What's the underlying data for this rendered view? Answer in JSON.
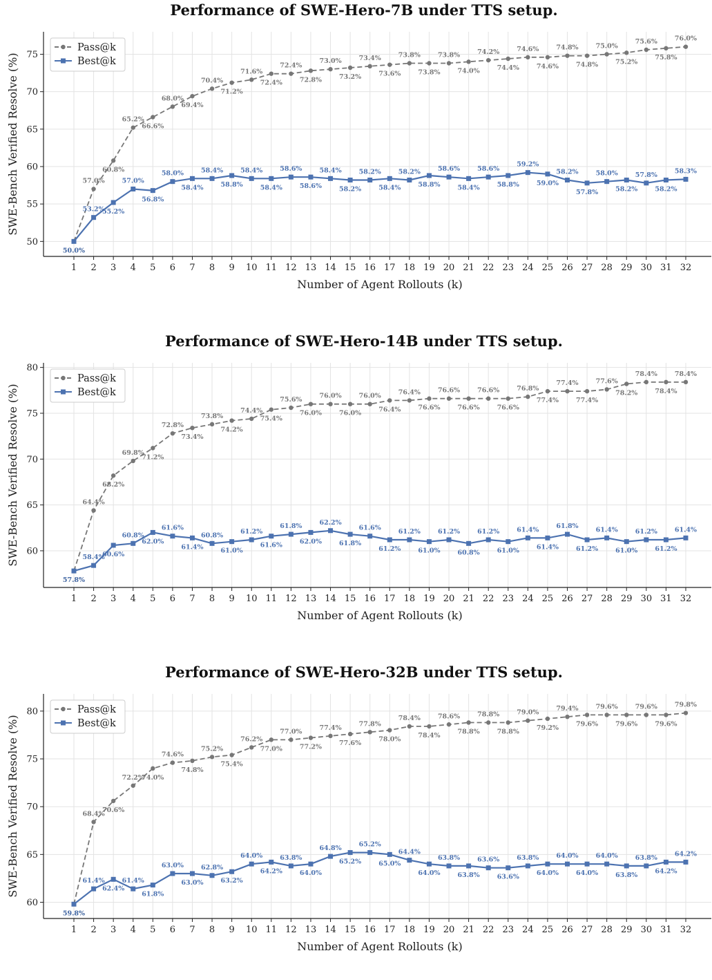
{
  "chart_data": [
    {
      "type": "line",
      "title": "Performance of SWE-Hero-7B under TTS setup.",
      "xlabel": "Number of Agent Rollouts (k)",
      "ylabel": "SWE-Bench Verified Resolve (%)",
      "x": [
        1,
        2,
        3,
        4,
        5,
        6,
        7,
        8,
        9,
        10,
        11,
        12,
        13,
        14,
        15,
        16,
        17,
        18,
        19,
        20,
        21,
        22,
        23,
        24,
        25,
        26,
        27,
        28,
        29,
        30,
        31,
        32
      ],
      "ylim": [
        48,
        78
      ],
      "yticks": [
        50,
        55,
        60,
        65,
        70,
        75
      ],
      "grid": true,
      "legend": "top-left",
      "series": [
        {
          "name": "Pass@k",
          "color": "#777777",
          "style": "dashed",
          "marker": "circle",
          "values": [
            50.0,
            57.0,
            60.8,
            65.2,
            66.6,
            68.0,
            69.4,
            70.4,
            71.2,
            71.6,
            72.4,
            72.4,
            72.8,
            73.0,
            73.2,
            73.4,
            73.6,
            73.8,
            73.8,
            73.8,
            74.0,
            74.2,
            74.4,
            74.6,
            74.6,
            74.8,
            74.8,
            75.0,
            75.2,
            75.6,
            75.8,
            76.0
          ]
        },
        {
          "name": "Best@k",
          "color": "#4c72b0",
          "style": "solid",
          "marker": "square",
          "values": [
            50.0,
            53.2,
            55.2,
            57.0,
            56.8,
            58.0,
            58.4,
            58.4,
            58.8,
            58.4,
            58.4,
            58.6,
            58.6,
            58.4,
            58.2,
            58.2,
            58.4,
            58.2,
            58.8,
            58.6,
            58.4,
            58.6,
            58.8,
            59.2,
            59.0,
            58.2,
            57.8,
            58.0,
            58.2,
            57.8,
            58.2,
            58.3
          ]
        }
      ]
    },
    {
      "type": "line",
      "title": "Performance of SWE-Hero-14B under TTS setup.",
      "xlabel": "Number of Agent Rollouts (k)",
      "ylabel": "SWE-Bench Verified Resolve (%)",
      "x": [
        1,
        2,
        3,
        4,
        5,
        6,
        7,
        8,
        9,
        10,
        11,
        12,
        13,
        14,
        15,
        16,
        17,
        18,
        19,
        20,
        21,
        22,
        23,
        24,
        25,
        26,
        27,
        28,
        29,
        30,
        31,
        32
      ],
      "ylim": [
        56,
        80.5
      ],
      "yticks": [
        60,
        65,
        70,
        75,
        80
      ],
      "grid": true,
      "legend": "top-left",
      "series": [
        {
          "name": "Pass@k",
          "color": "#777777",
          "style": "dashed",
          "marker": "circle",
          "values": [
            57.8,
            64.4,
            68.2,
            69.8,
            71.2,
            72.8,
            73.4,
            73.8,
            74.2,
            74.4,
            75.4,
            75.6,
            76.0,
            76.0,
            76.0,
            76.0,
            76.4,
            76.4,
            76.6,
            76.6,
            76.6,
            76.6,
            76.6,
            76.8,
            77.4,
            77.4,
            77.4,
            77.6,
            78.2,
            78.4,
            78.4,
            78.4
          ]
        },
        {
          "name": "Best@k",
          "color": "#4c72b0",
          "style": "solid",
          "marker": "square",
          "values": [
            57.8,
            58.4,
            60.6,
            60.8,
            62.0,
            61.6,
            61.4,
            60.8,
            61.0,
            61.2,
            61.6,
            61.8,
            62.0,
            62.2,
            61.8,
            61.6,
            61.2,
            61.2,
            61.0,
            61.2,
            60.8,
            61.2,
            61.0,
            61.4,
            61.4,
            61.8,
            61.2,
            61.4,
            61.0,
            61.2,
            61.2,
            61.4
          ]
        }
      ]
    },
    {
      "type": "line",
      "title": "Performance of SWE-Hero-32B under TTS setup.",
      "xlabel": "Number of Agent Rollouts (k)",
      "ylabel": "SWE-Bench Verified Resolve (%)",
      "x": [
        1,
        2,
        3,
        4,
        5,
        6,
        7,
        8,
        9,
        10,
        11,
        12,
        13,
        14,
        15,
        16,
        17,
        18,
        19,
        20,
        21,
        22,
        23,
        24,
        25,
        26,
        27,
        28,
        29,
        30,
        31,
        32
      ],
      "ylim": [
        58.3,
        81.8
      ],
      "yticks": [
        60,
        65,
        70,
        75,
        80
      ],
      "grid": true,
      "legend": "top-left",
      "series": [
        {
          "name": "Pass@k",
          "color": "#777777",
          "style": "dashed",
          "marker": "circle",
          "values": [
            59.8,
            68.4,
            70.6,
            72.2,
            74.0,
            74.6,
            74.8,
            75.2,
            75.4,
            76.2,
            77.0,
            77.0,
            77.2,
            77.4,
            77.6,
            77.8,
            78.0,
            78.4,
            78.4,
            78.6,
            78.8,
            78.8,
            78.8,
            79.0,
            79.2,
            79.4,
            79.6,
            79.6,
            79.6,
            79.6,
            79.6,
            79.8
          ]
        },
        {
          "name": "Best@k",
          "color": "#4c72b0",
          "style": "solid",
          "marker": "square",
          "values": [
            59.8,
            61.4,
            62.4,
            61.4,
            61.8,
            63.0,
            63.0,
            62.8,
            63.2,
            64.0,
            64.2,
            63.8,
            64.0,
            64.8,
            65.2,
            65.2,
            65.0,
            64.4,
            64.0,
            63.8,
            63.8,
            63.6,
            63.6,
            63.8,
            64.0,
            64.0,
            64.0,
            64.0,
            63.8,
            63.8,
            64.2,
            64.2
          ]
        }
      ]
    }
  ]
}
